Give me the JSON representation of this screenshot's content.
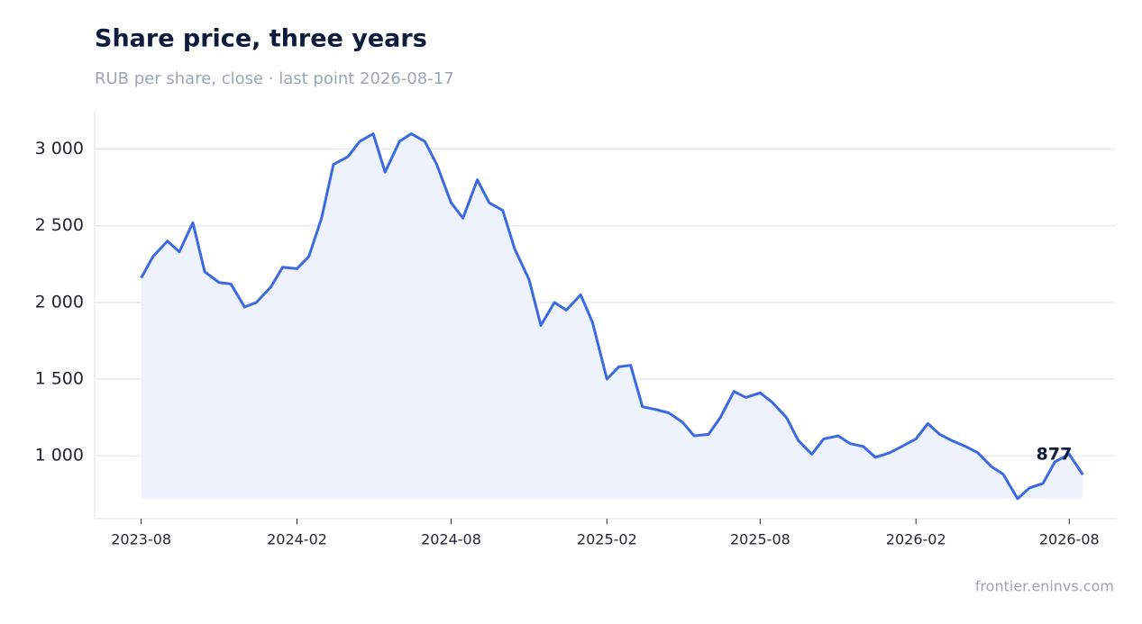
{
  "chart_data": {
    "type": "line",
    "title": "Share price, three years",
    "subtitle": "RUB per share, close · last point 2026-08-17",
    "source": "frontier.eninvs.com",
    "x": [
      "2023-08-01",
      "2023-08-15",
      "2023-09-01",
      "2023-09-15",
      "2023-10-01",
      "2023-10-15",
      "2023-11-01",
      "2023-11-15",
      "2023-12-01",
      "2023-12-15",
      "2024-01-01",
      "2024-01-15",
      "2024-02-01",
      "2024-02-15",
      "2024-03-01",
      "2024-03-15",
      "2024-04-01",
      "2024-04-15",
      "2024-05-01",
      "2024-05-15",
      "2024-06-01",
      "2024-06-15",
      "2024-07-01",
      "2024-07-15",
      "2024-08-01",
      "2024-08-15",
      "2024-09-01",
      "2024-09-15",
      "2024-10-01",
      "2024-10-15",
      "2024-11-01",
      "2024-11-15",
      "2024-12-01",
      "2024-12-15",
      "2025-01-01",
      "2025-01-15",
      "2025-02-01",
      "2025-02-15",
      "2025-03-01",
      "2025-03-15",
      "2025-04-01",
      "2025-04-15",
      "2025-05-01",
      "2025-05-15",
      "2025-06-01",
      "2025-06-15",
      "2025-07-01",
      "2025-07-15",
      "2025-08-01",
      "2025-08-15",
      "2025-09-01",
      "2025-09-15",
      "2025-10-01",
      "2025-10-15",
      "2025-11-01",
      "2025-11-15",
      "2025-12-01",
      "2025-12-15",
      "2026-01-01",
      "2026-01-15",
      "2026-02-01",
      "2026-02-15",
      "2026-03-01",
      "2026-03-15",
      "2026-04-01",
      "2026-04-15",
      "2026-05-01",
      "2026-05-15",
      "2026-06-01",
      "2026-06-15",
      "2026-07-01",
      "2026-07-15",
      "2026-08-01",
      "2026-08-17"
    ],
    "series": [
      {
        "name": "Close",
        "color": "#3b6ae0",
        "values": [
          2160,
          2300,
          2400,
          2330,
          2520,
          2200,
          2130,
          2120,
          1970,
          2000,
          2100,
          2230,
          2220,
          2300,
          2550,
          2900,
          2950,
          3050,
          3100,
          2850,
          3050,
          3100,
          3050,
          2900,
          2650,
          2550,
          2800,
          2650,
          2600,
          2350,
          2150,
          1850,
          2000,
          1950,
          2050,
          1870,
          1500,
          1580,
          1590,
          1320,
          1300,
          1280,
          1220,
          1130,
          1140,
          1250,
          1420,
          1380,
          1410,
          1350,
          1250,
          1100,
          1010,
          1110,
          1130,
          1080,
          1060,
          990,
          1020,
          1060,
          1110,
          1210,
          1140,
          1100,
          1060,
          1020,
          930,
          880,
          720,
          790,
          820,
          960,
          1010,
          877
        ]
      }
    ],
    "xlim": [
      "2023-06-07",
      "2026-09-24"
    ],
    "xticks": [
      {
        "value": "2023-08-01",
        "label": "2023-08"
      },
      {
        "value": "2024-02-01",
        "label": "2024-02"
      },
      {
        "value": "2024-08-01",
        "label": "2024-08"
      },
      {
        "value": "2025-02-01",
        "label": "2025-02"
      },
      {
        "value": "2025-08-01",
        "label": "2025-08"
      },
      {
        "value": "2026-02-01",
        "label": "2026-02"
      },
      {
        "value": "2026-08-01",
        "label": "2026-08"
      }
    ],
    "ylim": [
      590,
      3250
    ],
    "yticks": [
      {
        "value": 1000,
        "label": "1 000"
      },
      {
        "value": 1500,
        "label": "1 500"
      },
      {
        "value": 2000,
        "label": "2 000"
      },
      {
        "value": 2500,
        "label": "2 500"
      },
      {
        "value": 3000,
        "label": "3 000"
      }
    ],
    "grid": true,
    "area_fill": "#edf2fd"
  }
}
